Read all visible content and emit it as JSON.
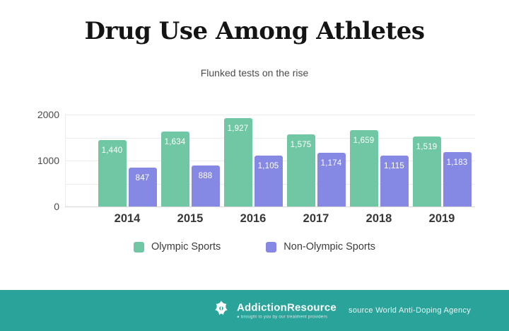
{
  "header": {
    "title": "Drug Use Among Athletes",
    "subtitle": "Flunked tests on the rise"
  },
  "chart_data": {
    "type": "bar",
    "title": "Drug Use Among Athletes",
    "subtitle": "Flunked tests on the rise",
    "categories": [
      "2014",
      "2015",
      "2016",
      "2017",
      "2018",
      "2019"
    ],
    "series": [
      {
        "name": "Olympic Sports",
        "color": "#6fc7a3",
        "values": [
          1440,
          1634,
          1927,
          1575,
          1659,
          1519
        ]
      },
      {
        "name": "Non-Olympic Sports",
        "color": "#8689e4",
        "values": [
          847,
          888,
          1105,
          1174,
          1115,
          1183
        ]
      }
    ],
    "value_labels": [
      [
        "1,440",
        "1,634",
        "1,927",
        "1,575",
        "1,659",
        "1,519"
      ],
      [
        "847",
        "888",
        "1,105",
        "1,174",
        "1,115",
        "1,183"
      ]
    ],
    "ylim": [
      0,
      2000
    ],
    "yticks": [
      0,
      1000,
      2000
    ],
    "gridline_step": 500,
    "grid": true,
    "legend_position": "bottom",
    "xlabel": "",
    "ylabel": ""
  },
  "footer": {
    "brand": "AddictionResource",
    "tagline_bullet": "●",
    "tagline": "brought to you by our treatment providers",
    "source": "source World Anti-Doping Agency",
    "background": "#2aa49a"
  }
}
